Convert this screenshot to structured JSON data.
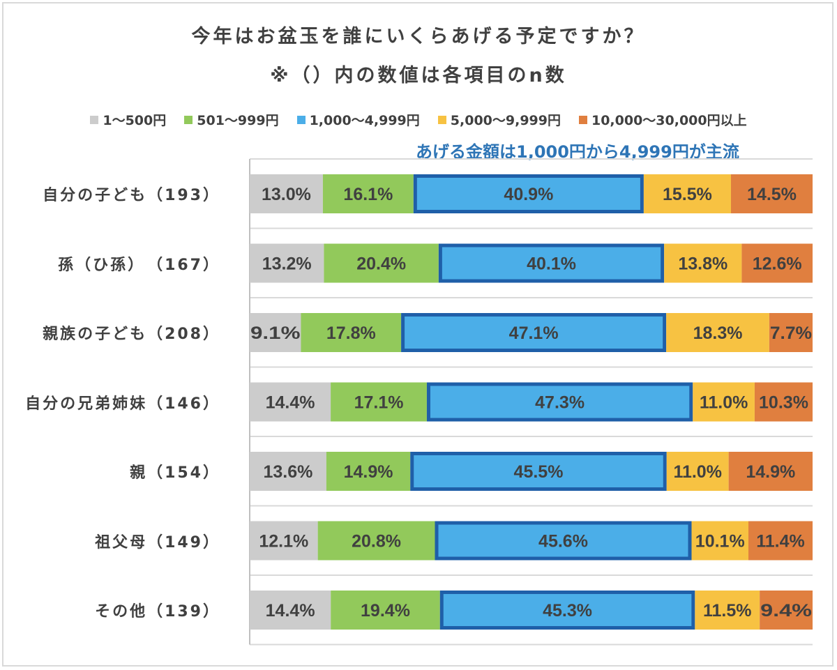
{
  "title": "今年はお盆玉を誰にいくらあげる予定ですか？",
  "subtitle": "※（）内の数値は各項目のn数",
  "annotation": "あげる金額は1,000円から4,999円が主流",
  "legend": [
    {
      "label": "1〜500円",
      "color": "#cccccc"
    },
    {
      "label": "501〜999円",
      "color": "#92c95b"
    },
    {
      "label": "1,000〜4,999円",
      "color": "#4baee8"
    },
    {
      "label": "5,000〜9,999円",
      "color": "#f7c242"
    },
    {
      "label": "10,000〜30,000円以上",
      "color": "#e07f3f"
    }
  ],
  "chart_data": {
    "type": "bar",
    "orientation": "horizontal",
    "stacked": true,
    "percent": true,
    "categories": [
      "自分の子ども（193）",
      "孫（ひ孫）　（167）",
      "親族の子ども（208）",
      "自分の兄弟姉妹（146）",
      "親（154）",
      "祖父母（149）",
      "その他（139）"
    ],
    "series": [
      {
        "name": "1〜500円",
        "color": "#cccccc",
        "values": [
          13.0,
          13.2,
          9.1,
          14.4,
          13.6,
          12.1,
          14.4
        ],
        "labels": [
          "13.0%",
          "13.2%",
          "9.1%",
          "14.4%",
          "13.6%",
          "12.1%",
          "14.4%"
        ]
      },
      {
        "name": "501〜999円",
        "color": "#92c95b",
        "values": [
          16.1,
          20.4,
          17.8,
          17.1,
          14.9,
          20.8,
          19.4
        ],
        "labels": [
          "16.1%",
          "20.4%",
          "17.8%",
          "17.1%",
          "14.9%",
          "20.8%",
          "19.4%"
        ]
      },
      {
        "name": "1,000〜4,999円",
        "color": "#4baee8",
        "highlight": true,
        "values": [
          40.9,
          40.1,
          47.1,
          47.3,
          45.5,
          45.6,
          45.3
        ],
        "labels": [
          "40.9%",
          "40.1%",
          "47.1%",
          "47.3%",
          "45.5%",
          "45.6%",
          "45.3%"
        ]
      },
      {
        "name": "5,000〜9,999円",
        "color": "#f7c242",
        "values": [
          15.5,
          13.8,
          18.3,
          11.0,
          11.0,
          10.1,
          11.5
        ],
        "labels": [
          "15.5%",
          "13.8%",
          "18.3%",
          "11.0%",
          "11.0%",
          "10.1%",
          "11.5%"
        ]
      },
      {
        "name": "10,000〜30,000円以上",
        "color": "#e07f3f",
        "values": [
          14.5,
          12.6,
          7.7,
          10.3,
          14.9,
          11.4,
          9.4
        ],
        "labels": [
          "14.5%",
          "12.6%",
          "7.7%",
          "10.3%",
          "14.9%",
          "11.4%",
          "9.4%"
        ]
      }
    ],
    "xlim": [
      0,
      100
    ],
    "grid": true,
    "legend_position": "top"
  }
}
